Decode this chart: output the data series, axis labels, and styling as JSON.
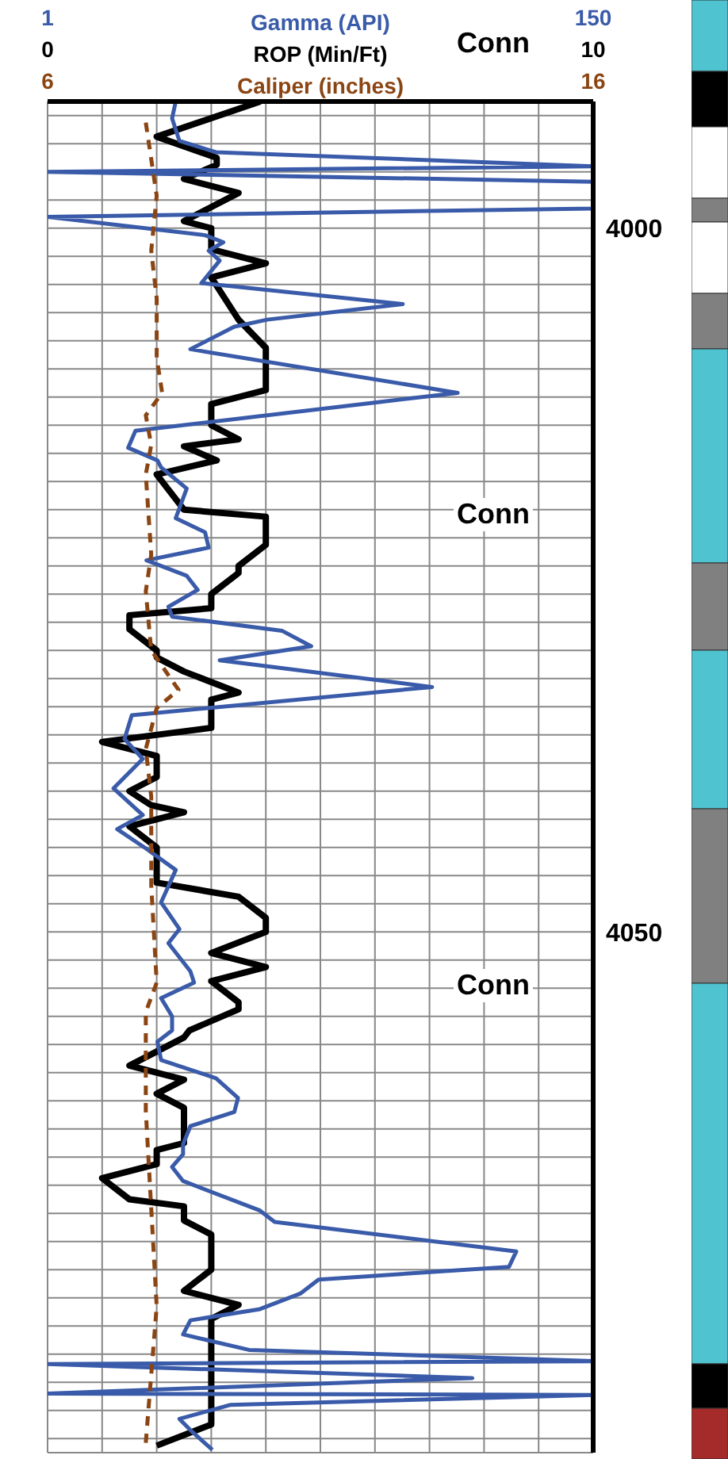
{
  "chart_data": [
    {
      "type": "line",
      "orientation": "horizontal",
      "xlabel": "ROP (Min/Ft)",
      "x2label": "Gamma (API)",
      "xlim": [
        0,
        10
      ],
      "xticks": [
        0,
        {
          "value": 1,
          "label": null
        },
        {
          "value": 2,
          "label": null
        },
        {
          "value": 3,
          "label": null
        },
        {
          "value": 4,
          "label": null
        },
        {
          "value": 5,
          "label": null
        },
        {
          "value": 6,
          "label": null
        },
        {
          "value": 7,
          "label": null
        },
        {
          "value": 8,
          "label": null
        },
        {
          "value": 9,
          "label": null
        },
        10
      ],
      "x2lim": [
        1,
        150
      ],
      "x2ticks": [
        1,
        150
      ],
      "ylim": [
        4087,
        3991
      ],
      "yticks": [
        {
          "value": 3992,
          "label": null
        },
        {
          "value": 3994,
          "label": null
        },
        {
          "value": 3996,
          "label": null
        },
        {
          "value": 3998,
          "label": null
        },
        4000,
        {
          "value": 4002,
          "label": null
        },
        {
          "value": 4004,
          "label": null
        },
        {
          "value": 4006,
          "label": null
        },
        {
          "value": 4008,
          "label": null
        },
        {
          "value": 4010,
          "label": null
        },
        {
          "value": 4012,
          "label": null
        },
        {
          "value": 4014,
          "label": null
        },
        {
          "value": 4016,
          "label": null
        },
        {
          "value": 4018,
          "label": null
        },
        {
          "value": 4020,
          "label": null
        },
        {
          "value": 4022,
          "label": null
        },
        {
          "value": 4024,
          "label": null
        },
        {
          "value": 4026,
          "label": null
        },
        {
          "value": 4028,
          "label": null
        },
        {
          "value": 4030,
          "label": null
        },
        {
          "value": 4032,
          "label": null
        },
        {
          "value": 4034,
          "label": null
        },
        {
          "value": 4036,
          "label": null
        },
        {
          "value": 4038,
          "label": null
        },
        {
          "value": 4040,
          "label": null
        },
        {
          "value": 4042,
          "label": null
        },
        {
          "value": 4044,
          "label": null
        },
        {
          "value": 4046,
          "label": null
        },
        {
          "value": 4048,
          "label": null
        },
        4050,
        {
          "value": 4052,
          "label": null
        },
        {
          "value": 4054,
          "label": null
        },
        {
          "value": 4056,
          "label": null
        },
        {
          "value": 4058,
          "label": null
        },
        {
          "value": 4060,
          "label": null
        },
        {
          "value": 4062,
          "label": null
        },
        {
          "value": 4064,
          "label": null
        },
        {
          "value": 4066,
          "label": null
        },
        {
          "value": 4068,
          "label": null
        },
        {
          "value": 4070,
          "label": null
        },
        {
          "value": 4072,
          "label": null
        },
        {
          "value": 4074,
          "label": null
        },
        {
          "value": 4076,
          "label": null
        },
        {
          "value": 4078,
          "label": null
        },
        {
          "value": 4080,
          "label": null
        },
        {
          "value": 4082,
          "label": null
        },
        {
          "value": 4084,
          "label": null
        },
        {
          "value": 4086,
          "label": null
        }
      ],
      "grid": true,
      "annotations": [
        "Conn",
        "Conn",
        "Conn"
      ],
      "series": [
        {
          "color": "#000000",
          "x": [
            3991,
            3993.5,
            3995,
            3995.5,
            3996.5,
            3997.5,
            3999.5,
            4000,
            4001.5,
            4002.5,
            4003.5,
            4006.5,
            4008.5,
            4011.5,
            4012.5,
            4014,
            4015,
            4015.5,
            4016.5,
            4017.5,
            4020,
            4020.5,
            4022.5,
            4024,
            4024.5,
            4026,
            4027,
            4027.5,
            4028.5,
            4030,
            4030.5,
            4031.5,
            4033,
            4033.5,
            4035.5,
            4036.5,
            4037.5,
            4039,
            4040,
            4041,
            4041.5,
            4042.5,
            4044,
            4046.5,
            4047.5,
            4049,
            4050,
            4051.5,
            4052.5,
            4053.5,
            4055,
            4055.5,
            4057,
            4057.5,
            4058.5,
            4059.5,
            4060.5,
            4061.5,
            4062.5,
            4065,
            4065.5,
            4066.5,
            4067.5,
            4069,
            4069.5,
            4070.5,
            4071.5,
            4074,
            4075.5,
            4076.5,
            4077.5,
            4085,
            4086.5
          ],
          "values": [
            3.9,
            2.0,
            3.1,
            3.1,
            2.5,
            3.5,
            2.5,
            3.0,
            3.0,
            4.0,
            3.0,
            3.5,
            4.0,
            4.0,
            3.0,
            3.0,
            3.5,
            2.5,
            3.1,
            2.0,
            2.5,
            4.0,
            4.0,
            3.5,
            3.5,
            3.0,
            3.0,
            1.5,
            1.5,
            2.0,
            2.0,
            2.5,
            3.5,
            3.0,
            3.0,
            1.0,
            2.0,
            2.0,
            1.5,
            1.9,
            2.5,
            1.5,
            2.0,
            2.0,
            3.5,
            4.0,
            4.0,
            3.0,
            4.0,
            3.0,
            3.5,
            3.5,
            2.6,
            2.5,
            2.0,
            1.5,
            2.5,
            2.0,
            2.5,
            2.5,
            2.0,
            2.0,
            1.0,
            1.5,
            2.5,
            2.5,
            3.0,
            3.0,
            2.5,
            3.5,
            3.0,
            3.0,
            2.0
          ]
        },
        {
          "color": "#3a5ba9",
          "axis": "x2",
          "x": [
            3991,
            3992.2,
            3993.8,
            3994.6,
            3995.6,
            3996,
            3996.7,
            3998.6,
            3999.2,
            4000.5,
            4001,
            4001.6,
            4002.3,
            4003.9,
            4005.4,
            4006.5,
            4007,
            4008.6,
            4011.7,
            4014.4,
            4015.6,
            4016.5,
            4017,
            4018.5,
            4020.6,
            4021.6,
            4022.7,
            4023.6,
            4024.7,
            4025.7,
            4026.9,
            4027.6,
            4028.6,
            4029.7,
            4030.7,
            4032.6,
            4034.6,
            4036.3,
            4037.7,
            4039.8,
            4041.7,
            4042.7,
            4044.1,
            4045.6,
            4047.9,
            4049.8,
            4050.8,
            4052.8,
            4053.6,
            4054.7,
            4056,
            4057,
            4057.8,
            4059.1,
            4060.4,
            4061.8,
            4062.8,
            4063.8,
            4065.1,
            4065.8,
            4066.7,
            4067.7,
            4069.8,
            4070.6,
            4072.7,
            4073.8,
            4074.7,
            4075.7,
            4076.8,
            4077.6,
            4078.6,
            4079.7,
            4080.5,
            4080.7,
            4081.7,
            4082.8,
            4082.9,
            4083.6,
            4084.6,
            4085.4,
            4086.8
          ],
          "values": [
            36,
            35,
            37,
            47,
            150,
            1,
            150,
            150,
            1,
            44,
            49,
            45,
            48,
            43,
            98,
            61,
            52,
            40,
            113,
            25,
            23,
            31,
            32,
            39,
            36,
            44,
            45,
            28,
            39,
            42,
            34,
            35,
            65,
            73,
            48,
            106,
            24,
            22,
            27,
            19,
            27,
            20,
            28,
            36,
            32,
            37,
            34,
            40,
            41,
            32,
            35,
            35,
            31,
            32,
            47,
            53,
            52,
            40,
            38,
            38,
            35,
            38,
            59,
            63,
            129,
            127,
            75,
            70,
            59,
            40,
            38,
            56,
            150,
            1,
            117,
            1,
            150,
            51,
            37,
            40,
            46
          ]
        }
      ]
    },
    {
      "type": "line",
      "orientation": "horizontal",
      "xlabel": "Caliper (inches)",
      "xlim": [
        6,
        16
      ],
      "xticks": [
        6,
        16
      ],
      "ylim": [
        4087,
        3991
      ],
      "tick_labels": "x",
      "series": [
        {
          "color": "#8b4513",
          "line_style": "dashed",
          "x": [
            3992.5,
            3997.7,
            4001.6,
            4005,
            4009.2,
            4011.7,
            4013.3,
            4015.4,
            4017.5,
            4023.2,
            4025.8,
            4030,
            4032.8,
            4034.1,
            4037,
            4040.4,
            4046.7,
            4053.6,
            4055.7,
            4062.7,
            4076.6,
            4086.3
          ],
          "values": [
            7.8,
            8.0,
            7.9,
            8.0,
            8.0,
            8.1,
            7.8,
            7.9,
            7.8,
            7.9,
            7.8,
            7.9,
            8.4,
            8.0,
            7.8,
            7.9,
            7.9,
            8.0,
            7.8,
            7.8,
            8.0,
            7.8
          ]
        }
      ]
    }
  ]
}
